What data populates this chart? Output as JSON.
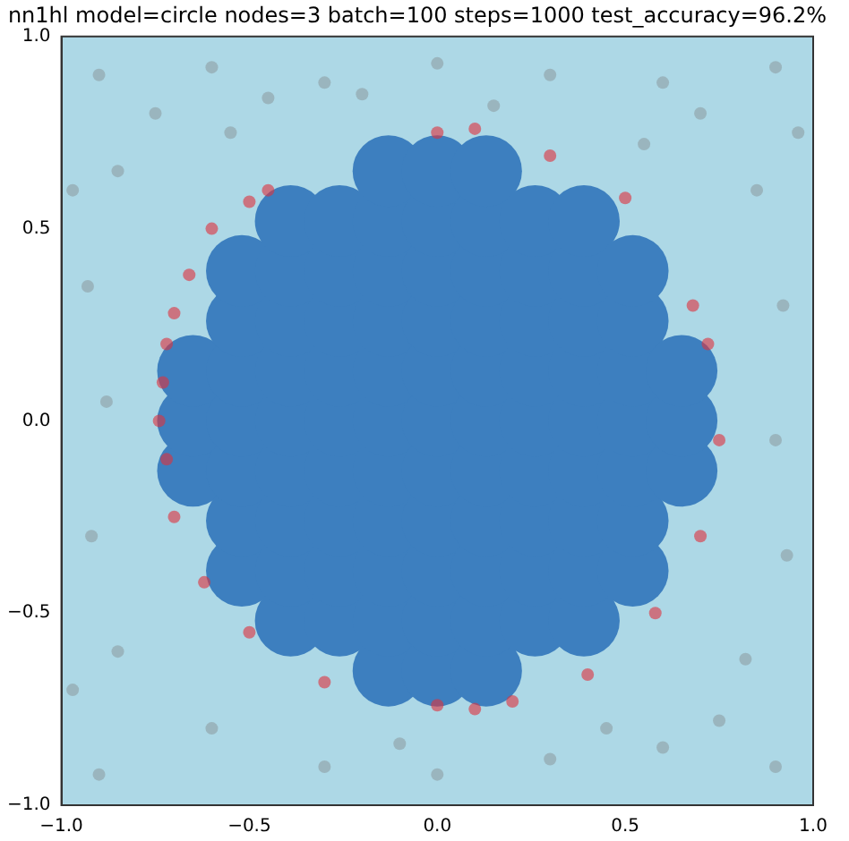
{
  "chart_data": {
    "type": "scatter",
    "title": "nn1hl model=circle nodes=3 batch=100 steps=1000 test_accuracy=96.2%",
    "xlim": [
      -1,
      1
    ],
    "ylim": [
      -1,
      1
    ],
    "xticks": [
      {
        "value": -1,
        "label": "−1.0"
      },
      {
        "value": -0.5,
        "label": "−0.5"
      },
      {
        "value": 0,
        "label": "0.0"
      },
      {
        "value": 0.5,
        "label": "0.5"
      },
      {
        "value": 1,
        "label": "1.0"
      }
    ],
    "yticks": [
      {
        "value": -1,
        "label": "−1.0"
      },
      {
        "value": -0.5,
        "label": "−0.5"
      },
      {
        "value": 0,
        "label": "0.0"
      },
      {
        "value": 0.5,
        "label": "0.5"
      },
      {
        "value": 1,
        "label": "1.0"
      }
    ],
    "grid": false,
    "legend": false,
    "marker": "circle",
    "series": [
      {
        "color": "#3d7fbf",
        "x": [
          -0.65,
          -0.65,
          -0.65,
          -0.52,
          -0.52,
          -0.52,
          -0.52,
          -0.52,
          -0.52,
          -0.52,
          -0.39,
          -0.39,
          -0.39,
          -0.39,
          -0.39,
          -0.39,
          -0.39,
          -0.39,
          -0.39,
          -0.26,
          -0.26,
          -0.26,
          -0.26,
          -0.26,
          -0.26,
          -0.26,
          -0.26,
          -0.26,
          -0.13,
          -0.13,
          -0.13,
          -0.13,
          -0.13,
          -0.13,
          -0.13,
          -0.13,
          -0.13,
          -0.13,
          -0.13,
          0,
          0,
          0,
          0,
          0,
          0,
          0,
          0,
          0,
          0,
          0,
          0.13,
          0.13,
          0.13,
          0.13,
          0.13,
          0.13,
          0.13,
          0.13,
          0.13,
          0.13,
          0.13,
          0.26,
          0.26,
          0.26,
          0.26,
          0.26,
          0.26,
          0.26,
          0.26,
          0.26,
          0.39,
          0.39,
          0.39,
          0.39,
          0.39,
          0.39,
          0.39,
          0.39,
          0.39,
          0.52,
          0.52,
          0.52,
          0.52,
          0.52,
          0.52,
          0.52,
          0.65,
          0.65,
          0.65
        ],
        "values": [
          -0.13,
          0,
          0.13,
          -0.39,
          -0.26,
          -0.13,
          0,
          0.13,
          0.26,
          0.39,
          -0.52,
          -0.39,
          -0.26,
          -0.13,
          0,
          0.13,
          0.26,
          0.39,
          0.52,
          -0.52,
          -0.39,
          -0.26,
          -0.13,
          0,
          0.13,
          0.26,
          0.39,
          0.52,
          -0.65,
          -0.52,
          -0.39,
          -0.26,
          -0.13,
          0,
          0.13,
          0.26,
          0.39,
          0.52,
          0.65,
          -0.65,
          -0.52,
          -0.39,
          -0.26,
          -0.13,
          0,
          0.13,
          0.26,
          0.39,
          0.52,
          0.65,
          -0.65,
          -0.52,
          -0.39,
          -0.26,
          -0.13,
          0,
          0.13,
          0.26,
          0.39,
          0.52,
          0.65,
          -0.52,
          -0.39,
          -0.26,
          -0.13,
          0,
          0.13,
          0.26,
          0.39,
          0.52,
          -0.52,
          -0.39,
          -0.26,
          -0.13,
          0,
          0.13,
          0.26,
          0.39,
          0.52,
          -0.39,
          -0.26,
          -0.13,
          0,
          0.13,
          0.26,
          0.39,
          -0.13,
          0,
          0.13
        ]
      },
      {
        "color": "#8e9ea3",
        "x": [
          -0.9,
          -0.6,
          -0.3,
          0,
          0.3,
          0.6,
          0.9,
          -0.85,
          -0.55,
          0.55,
          0.85,
          0.7,
          -0.75,
          -0.93,
          -0.88,
          -0.92,
          0.92,
          0.9,
          0.93,
          -0.85,
          -0.6,
          -0.3,
          0,
          0.3,
          0.6,
          0.9,
          -0.9,
          0.82,
          0.15,
          -0.2,
          -0.1,
          0.45,
          -0.45,
          0.96,
          -0.97,
          -0.97,
          0.75
        ],
        "values": [
          0.9,
          0.92,
          0.88,
          0.93,
          0.9,
          0.88,
          0.92,
          0.65,
          0.75,
          0.72,
          0.6,
          0.8,
          0.8,
          0.35,
          0.05,
          -0.3,
          0.3,
          -0.05,
          -0.35,
          -0.6,
          -0.8,
          -0.9,
          -0.92,
          -0.88,
          -0.85,
          -0.9,
          -0.92,
          -0.62,
          0.82,
          0.85,
          -0.84,
          -0.8,
          0.84,
          0.75,
          0.6,
          -0.7,
          -0.78
        ]
      },
      {
        "color": "#e0303c",
        "x": [
          -0.72,
          -0.73,
          -0.74,
          -0.72,
          -0.7,
          -0.66,
          -0.6,
          -0.5,
          -0.45,
          0,
          0.1,
          0.3,
          0.5,
          0.68,
          0.72,
          0.75,
          0.7,
          0.58,
          0.4,
          0.2,
          0.1,
          0,
          -0.3,
          -0.5,
          -0.62,
          -0.7
        ],
        "values": [
          0.2,
          0.1,
          0,
          -0.1,
          0.28,
          0.38,
          0.5,
          0.57,
          0.6,
          0.75,
          0.76,
          0.69,
          0.58,
          0.3,
          0.2,
          -0.05,
          -0.3,
          -0.5,
          -0.66,
          -0.73,
          -0.75,
          -0.74,
          -0.68,
          -0.55,
          -0.42,
          -0.25
        ]
      }
    ]
  }
}
